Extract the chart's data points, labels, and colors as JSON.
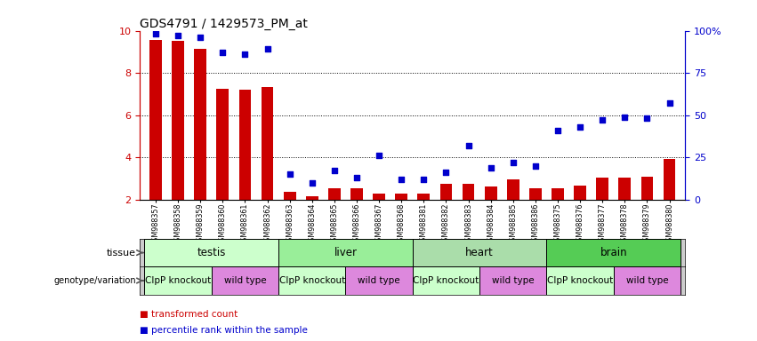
{
  "title": "GDS4791 / 1429573_PM_at",
  "samples": [
    "GSM988357",
    "GSM988358",
    "GSM988359",
    "GSM988360",
    "GSM988361",
    "GSM988362",
    "GSM988363",
    "GSM988364",
    "GSM988365",
    "GSM988366",
    "GSM988367",
    "GSM988368",
    "GSM988381",
    "GSM988382",
    "GSM988383",
    "GSM988384",
    "GSM988385",
    "GSM988386",
    "GSM988375",
    "GSM988376",
    "GSM988377",
    "GSM988378",
    "GSM988379",
    "GSM988380"
  ],
  "bar_values": [
    9.55,
    9.5,
    9.15,
    7.25,
    7.2,
    7.35,
    2.35,
    2.15,
    2.55,
    2.55,
    2.3,
    2.3,
    2.3,
    2.75,
    2.75,
    2.6,
    2.95,
    2.55,
    2.55,
    2.65,
    3.05,
    3.05,
    3.1,
    3.9
  ],
  "dot_values": [
    98,
    97,
    96,
    87,
    86,
    89,
    15,
    10,
    17,
    13,
    26,
    12,
    12,
    16,
    32,
    19,
    22,
    20,
    41,
    43,
    47,
    49,
    48,
    57
  ],
  "ylim_left": [
    2,
    10
  ],
  "ylim_right": [
    0,
    100
  ],
  "bar_color": "#cc0000",
  "dot_color": "#0000cc",
  "tissues": [
    {
      "label": "testis",
      "start": 0,
      "end": 6,
      "color": "#ccffcc"
    },
    {
      "label": "liver",
      "start": 6,
      "end": 12,
      "color": "#99ee99"
    },
    {
      "label": "heart",
      "start": 12,
      "end": 18,
      "color": "#aaddaa"
    },
    {
      "label": "brain",
      "start": 18,
      "end": 24,
      "color": "#55cc55"
    }
  ],
  "genotypes": [
    {
      "label": "ClpP knockout",
      "start": 0,
      "end": 3,
      "color": "#ccffcc"
    },
    {
      "label": "wild type",
      "start": 3,
      "end": 6,
      "color": "#dd88dd"
    },
    {
      "label": "ClpP knockout",
      "start": 6,
      "end": 9,
      "color": "#ccffcc"
    },
    {
      "label": "wild type",
      "start": 9,
      "end": 12,
      "color": "#dd88dd"
    },
    {
      "label": "ClpP knockout",
      "start": 12,
      "end": 15,
      "color": "#ccffcc"
    },
    {
      "label": "wild type",
      "start": 15,
      "end": 18,
      "color": "#dd88dd"
    },
    {
      "label": "ClpP knockout",
      "start": 18,
      "end": 21,
      "color": "#ccffcc"
    },
    {
      "label": "wild type",
      "start": 21,
      "end": 24,
      "color": "#dd88dd"
    }
  ],
  "legend_items": [
    {
      "label": "transformed count",
      "color": "#cc0000"
    },
    {
      "label": "percentile rank within the sample",
      "color": "#0000cc"
    }
  ],
  "tissue_row_label": "tissue",
  "genotype_row_label": "genotype/variation"
}
